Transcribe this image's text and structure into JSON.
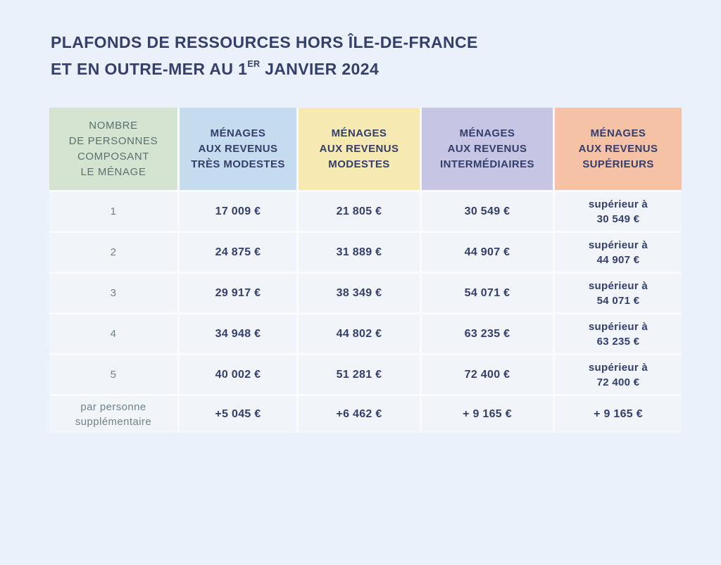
{
  "page": {
    "background_color": "#ebf1fa",
    "text_navy_color": "#333e6b",
    "muted_gray_color": "#71808c"
  },
  "title": {
    "line1": "PLAFONDS DE RESSOURCES HORS ÎLE-DE-FRANCE",
    "line2_pre": "ET EN OUTRE-MER AU 1",
    "line2_sup": "ER",
    "line2_post": " JANVIER 2024"
  },
  "table": {
    "headers": [
      {
        "label": "NOMBRE\nDE PERSONNES\nCOMPOSANT\nLE MÉNAGE",
        "bg": "#d5e4d1"
      },
      {
        "label": "MÉNAGES\nAUX REVENUS\nTRÈS MODESTES",
        "bg": "#c5dcee"
      },
      {
        "label": "MÉNAGES\nAUX REVENUS\nMODESTES",
        "bg": "#f7e9b2"
      },
      {
        "label": "MÉNAGES\nAUX REVENUS\nINTERMÉDIAIRES",
        "bg": "#c7c5e4"
      },
      {
        "label": "MÉNAGES\nAUX REVENUS\nSUPÉRIEURS",
        "bg": "#f6c2a6"
      }
    ],
    "rows": [
      {
        "label": "1",
        "tres_modestes": "17 009 €",
        "modestes": "21 805 €",
        "intermediaires": "30 549 €",
        "superieurs": "supérieur à\n30 549 €"
      },
      {
        "label": "2",
        "tres_modestes": "24 875 €",
        "modestes": "31 889 €",
        "intermediaires": "44 907 €",
        "superieurs": "supérieur à\n44 907 €"
      },
      {
        "label": "3",
        "tres_modestes": "29 917 €",
        "modestes": "38 349 €",
        "intermediaires": "54 071 €",
        "superieurs": "supérieur à\n54 071 €"
      },
      {
        "label": "4",
        "tres_modestes": "34 948 €",
        "modestes": "44 802 €",
        "intermediaires": "63 235 €",
        "superieurs": "supérieur à\n63 235 €"
      },
      {
        "label": "5",
        "tres_modestes": "40 002 €",
        "modestes": "51 281 €",
        "intermediaires": "72 400 €",
        "superieurs": "supérieur à\n72 400 €"
      },
      {
        "label": "par personne\nsupplémentaire",
        "tres_modestes": "+5 045 €",
        "modestes": "+6 462 €",
        "intermediaires": "+ 9 165 €",
        "superieurs": "+ 9 165 €"
      }
    ]
  }
}
